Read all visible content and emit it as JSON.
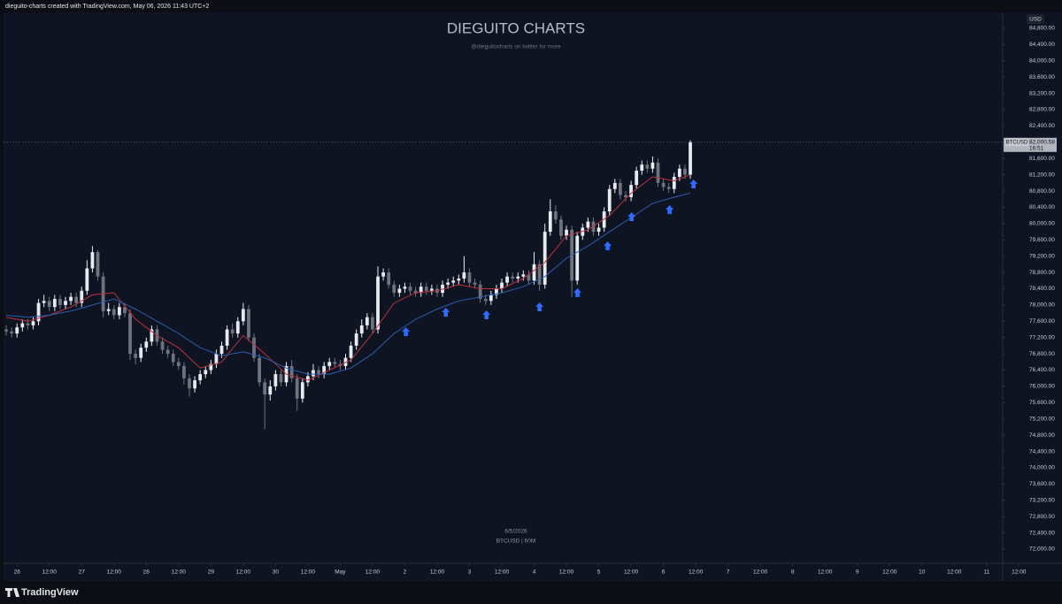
{
  "header": "dieguito-charts created with TradingView.com, May 06, 2026 11:43 UTC+2",
  "footer": "TradingView",
  "chart_data": {
    "type": "candlestick",
    "title": "DIEGUITO CHARTS",
    "subtitle": "@dieguitocharts on twitter for more",
    "watermark_date": "6/5/2026",
    "watermark_symbol": "BTCUSD | 60M",
    "y_axis_label": "USD",
    "up_color": "#e8eaf0",
    "down_color": "#6f7380",
    "x": [
      -4,
      -2,
      0,
      2,
      4,
      6,
      8,
      10,
      12,
      14,
      16,
      18,
      20,
      22,
      24,
      26,
      28,
      30,
      32,
      34,
      36,
      38,
      40,
      42,
      44,
      46,
      48,
      50,
      52,
      54,
      56,
      58,
      60,
      62,
      64,
      66,
      68,
      70,
      72,
      74,
      76,
      78,
      80,
      82,
      84,
      86,
      88,
      90,
      92,
      94,
      96,
      98,
      100,
      102,
      104,
      106,
      108,
      110,
      112,
      114,
      116,
      118,
      120,
      122,
      124,
      126,
      128,
      130,
      132,
      134,
      136,
      138,
      140,
      142,
      144,
      146,
      148,
      150,
      152,
      154,
      156,
      158,
      160,
      162,
      164,
      166,
      168,
      170,
      172,
      174,
      176,
      178,
      180,
      182,
      184,
      186,
      188,
      190,
      192,
      194,
      196,
      198,
      200,
      202,
      204,
      206,
      208,
      210,
      212,
      214,
      216,
      218,
      220,
      222,
      224,
      226,
      228,
      230,
      232,
      234,
      236,
      238,
      240,
      242,
      244,
      246,
      248,
      250
    ],
    "open": [
      77400,
      77350,
      77300,
      77450,
      77550,
      77500,
      77600,
      78050,
      78100,
      77950,
      78150,
      78000,
      78100,
      78200,
      78050,
      78350,
      78900,
      79300,
      78700,
      77850,
      77900,
      77750,
      77950,
      77800,
      76800,
      76700,
      76950,
      77100,
      77400,
      77100,
      76900,
      76800,
      76600,
      76500,
      76200,
      75950,
      76150,
      76300,
      76400,
      76550,
      76800,
      77000,
      77400,
      77300,
      77600,
      77900,
      77200,
      76700,
      76100,
      75800,
      76000,
      76300,
      76100,
      76500,
      76200,
      75700,
      76100,
      76250,
      76400,
      76300,
      76500,
      76600,
      76550,
      76500,
      76700,
      77000,
      77300,
      77500,
      77700,
      77400,
      78700,
      78800,
      78500,
      78300,
      78400,
      78450,
      78350,
      78300,
      78450,
      78350,
      78400,
      78300,
      78500,
      78550,
      78600,
      78650,
      78800,
      78550,
      78500,
      78150,
      78100,
      78250,
      78400,
      78550,
      78700,
      78650,
      78700,
      78750,
      78600,
      79000,
      78500,
      79800,
      80300,
      80100,
      79700,
      79850,
      78600,
      79700,
      79900,
      80050,
      79800,
      79900,
      80300,
      80850,
      81000,
      80700,
      80650,
      80950,
      81300,
      81450,
      81350,
      81500,
      81000,
      80900,
      80850,
      81150,
      81350,
      81200
    ],
    "high": [
      77500,
      77450,
      77550,
      77650,
      77650,
      77700,
      78150,
      78250,
      78200,
      78250,
      78250,
      78200,
      78300,
      78300,
      78450,
      79100,
      79450,
      79350,
      78800,
      78050,
      78000,
      78050,
      78050,
      77900,
      76900,
      77050,
      77200,
      77500,
      77500,
      77200,
      77000,
      76900,
      76700,
      76600,
      76300,
      76250,
      76400,
      76500,
      76650,
      76900,
      77100,
      77500,
      77550,
      77700,
      78050,
      78000,
      77300,
      76800,
      76200,
      76150,
      76400,
      76400,
      76600,
      76650,
      76300,
      76200,
      76350,
      76550,
      76500,
      76600,
      76700,
      76700,
      76650,
      76800,
      77100,
      77400,
      77650,
      77800,
      77800,
      78950,
      78900,
      78900,
      78600,
      78500,
      78550,
      78550,
      78450,
      78550,
      78550,
      78500,
      78500,
      78600,
      78650,
      78700,
      78750,
      79200,
      78900,
      78650,
      78600,
      78250,
      78350,
      78500,
      78650,
      78800,
      78800,
      78800,
      78850,
      78850,
      79300,
      79100,
      80000,
      80600,
      80450,
      80200,
      79950,
      79950,
      79800,
      80000,
      80150,
      80150,
      80000,
      80400,
      80950,
      81100,
      81100,
      80800,
      81050,
      81400,
      81550,
      81550,
      81650,
      81600,
      81100,
      81000,
      81250,
      81450,
      81450,
      82050
    ],
    "low": [
      77250,
      77200,
      77200,
      77350,
      77400,
      77400,
      77500,
      77950,
      77850,
      77850,
      77900,
      77900,
      78000,
      77950,
      77950,
      78250,
      78800,
      78600,
      77700,
      77750,
      77650,
      77650,
      77700,
      76650,
      76550,
      76600,
      76850,
      77000,
      77000,
      76800,
      76700,
      76500,
      76400,
      76050,
      75750,
      75850,
      76050,
      76200,
      76300,
      76450,
      76700,
      76900,
      77200,
      77200,
      77500,
      77100,
      76600,
      76000,
      74950,
      75650,
      75900,
      76000,
      76000,
      76100,
      75400,
      75600,
      76000,
      76150,
      76200,
      76200,
      76400,
      76450,
      76400,
      76400,
      76600,
      76900,
      77200,
      77400,
      77300,
      77300,
      78600,
      78400,
      78200,
      78200,
      78300,
      78250,
      78200,
      78200,
      78250,
      78250,
      78200,
      78200,
      78400,
      78450,
      78500,
      78550,
      78450,
      78400,
      78050,
      78000,
      78000,
      78150,
      78300,
      78450,
      78550,
      78550,
      78600,
      78500,
      78500,
      78350,
      78400,
      79700,
      80000,
      79600,
      79600,
      78200,
      78500,
      79600,
      79800,
      79700,
      79700,
      79800,
      80200,
      80750,
      80600,
      80550,
      80550,
      80850,
      81200,
      81250,
      81250,
      80900,
      80800,
      80750,
      80750,
      81050,
      81100,
      81100
    ],
    "close": [
      77350,
      77300,
      77450,
      77550,
      77500,
      77600,
      78050,
      78100,
      77950,
      78150,
      78000,
      78100,
      78200,
      78050,
      78350,
      78900,
      79300,
      78700,
      77850,
      77900,
      77750,
      77950,
      77800,
      76800,
      76700,
      76950,
      77100,
      77400,
      77100,
      76900,
      76800,
      76600,
      76500,
      76200,
      75950,
      76150,
      76300,
      76400,
      76550,
      76800,
      77000,
      77400,
      77300,
      77600,
      77900,
      77200,
      76700,
      76100,
      75800,
      76000,
      76300,
      76100,
      76500,
      76200,
      75700,
      76100,
      76250,
      76400,
      76300,
      76500,
      76600,
      76550,
      76500,
      76700,
      77000,
      77300,
      77500,
      77700,
      77400,
      78700,
      78800,
      78500,
      78300,
      78400,
      78450,
      78350,
      78300,
      78450,
      78350,
      78400,
      78300,
      78500,
      78550,
      78600,
      78650,
      78800,
      78550,
      78500,
      78150,
      78100,
      78250,
      78400,
      78550,
      78700,
      78650,
      78700,
      78750,
      78600,
      79000,
      78500,
      79800,
      80300,
      80100,
      79700,
      79850,
      78600,
      79700,
      79900,
      80050,
      79800,
      79900,
      80300,
      80850,
      81000,
      80700,
      80650,
      80950,
      81300,
      81450,
      81350,
      81500,
      81000,
      80900,
      80850,
      81150,
      81350,
      81200,
      82000
    ],
    "series": [
      {
        "color": "#b8323c",
        "x": [
          -4,
          4,
          12,
          20,
          28,
          36,
          44,
          52,
          60,
          68,
          76,
          84,
          92,
          100,
          108,
          116,
          124,
          132,
          140,
          148,
          156,
          164,
          172,
          180,
          188,
          196,
          204,
          212,
          220,
          228,
          236,
          244,
          250
        ],
        "values": [
          77700,
          77600,
          77750,
          77950,
          78250,
          78300,
          77650,
          77250,
          76950,
          76450,
          76600,
          77250,
          76800,
          76300,
          76150,
          76400,
          76650,
          77300,
          78050,
          78300,
          78350,
          78500,
          78400,
          78400,
          78650,
          79050,
          79700,
          79850,
          80200,
          80750,
          81150,
          81050,
          81200
        ]
      },
      {
        "color": "#2b5cb0",
        "x": [
          -4,
          4,
          12,
          20,
          28,
          36,
          44,
          52,
          60,
          68,
          76,
          84,
          92,
          100,
          108,
          116,
          124,
          132,
          140,
          148,
          156,
          164,
          172,
          180,
          188,
          196,
          204,
          212,
          220,
          228,
          236,
          244,
          250
        ],
        "values": [
          77750,
          77700,
          77750,
          77850,
          78000,
          78150,
          77900,
          77600,
          77300,
          76950,
          76750,
          76850,
          76700,
          76450,
          76300,
          76300,
          76450,
          76800,
          77300,
          77650,
          77900,
          78100,
          78200,
          78300,
          78450,
          78700,
          79150,
          79450,
          79800,
          80150,
          80500,
          80650,
          80750
        ]
      }
    ],
    "signals": {
      "color": "#2f6bff",
      "x": [
        144.4,
        159.2,
        174.3,
        194,
        208.1,
        219.3,
        228.2,
        242.3,
        251.2
      ],
      "values": [
        77455,
        77933,
        77868,
        78064,
        78412,
        79563,
        80280,
        80454,
        81084
      ]
    },
    "last_price": {
      "value": 82000.58,
      "label": "82,000.58",
      "symbol": "BTCUSD",
      "countdown": "16:51"
    },
    "xlim": [
      -5,
      388
    ],
    "ylim": [
      71652,
      85191
    ],
    "xticks": [
      {
        "value": 0,
        "label": "26"
      },
      {
        "value": 12,
        "label": "12:00"
      },
      {
        "value": 24,
        "label": "27"
      },
      {
        "value": 36,
        "label": "12:00"
      },
      {
        "value": 48,
        "label": "28"
      },
      {
        "value": 60,
        "label": "12:00"
      },
      {
        "value": 72,
        "label": "29"
      },
      {
        "value": 84,
        "label": "12:00"
      },
      {
        "value": 96,
        "label": "30"
      },
      {
        "value": 108,
        "label": "12:00"
      },
      {
        "value": 120,
        "label": "May"
      },
      {
        "value": 132,
        "label": "12:00"
      },
      {
        "value": 144,
        "label": "2"
      },
      {
        "value": 156,
        "label": "12:00"
      },
      {
        "value": 168,
        "label": "3"
      },
      {
        "value": 180,
        "label": "12:00"
      },
      {
        "value": 192,
        "label": "4"
      },
      {
        "value": 204,
        "label": "12:00"
      },
      {
        "value": 216,
        "label": "5"
      },
      {
        "value": 228,
        "label": "12:00"
      },
      {
        "value": 240,
        "label": "6"
      },
      {
        "value": 252,
        "label": "12:00"
      },
      {
        "value": 264,
        "label": "7"
      },
      {
        "value": 276,
        "label": "12:00"
      },
      {
        "value": 288,
        "label": "8"
      },
      {
        "value": 300,
        "label": "12:00"
      },
      {
        "value": 312,
        "label": "9"
      },
      {
        "value": 324,
        "label": "12:00"
      },
      {
        "value": 336,
        "label": "10"
      },
      {
        "value": 348,
        "label": "12:00"
      },
      {
        "value": 360,
        "label": "11"
      },
      {
        "value": 372,
        "label": "12:00"
      }
    ],
    "yticks": [
      {
        "value": 72000,
        "label": "72,000.00"
      },
      {
        "value": 72400,
        "label": "72,400.00"
      },
      {
        "value": 72800,
        "label": "72,800.00"
      },
      {
        "value": 73200,
        "label": "73,200.00"
      },
      {
        "value": 73600,
        "label": "73,600.00"
      },
      {
        "value": 74000,
        "label": "74,000.00"
      },
      {
        "value": 74400,
        "label": "74,400.00"
      },
      {
        "value": 74800,
        "label": "74,800.00"
      },
      {
        "value": 75200,
        "label": "75,200.00"
      },
      {
        "value": 75600,
        "label": "75,600.00"
      },
      {
        "value": 76000,
        "label": "76,000.00"
      },
      {
        "value": 76400,
        "label": "76,400.00"
      },
      {
        "value": 76800,
        "label": "76,800.00"
      },
      {
        "value": 77200,
        "label": "77,200.00"
      },
      {
        "value": 77600,
        "label": "77,600.00"
      },
      {
        "value": 78000,
        "label": "78,000.00"
      },
      {
        "value": 78400,
        "label": "78,400.00"
      },
      {
        "value": 78800,
        "label": "78,800.00"
      },
      {
        "value": 79200,
        "label": "79,200.00"
      },
      {
        "value": 79600,
        "label": "79,600.00"
      },
      {
        "value": 80000,
        "label": "80,000.00"
      },
      {
        "value": 80400,
        "label": "80,400.00"
      },
      {
        "value": 80800,
        "label": "80,800.00"
      },
      {
        "value": 81200,
        "label": "81,200.00"
      },
      {
        "value": 81600,
        "label": "81,600.00"
      },
      {
        "value": 82000,
        "label": "82,000.00"
      },
      {
        "value": 82400,
        "label": "82,400.00"
      },
      {
        "value": 82800,
        "label": "82,800.00"
      },
      {
        "value": 83200,
        "label": "83,200.00"
      },
      {
        "value": 83600,
        "label": "83,600.00"
      },
      {
        "value": 84000,
        "label": "84,000.00"
      },
      {
        "value": 84400,
        "label": "84,400.00"
      },
      {
        "value": 84800,
        "label": "84,800.00"
      }
    ],
    "grid": false
  }
}
